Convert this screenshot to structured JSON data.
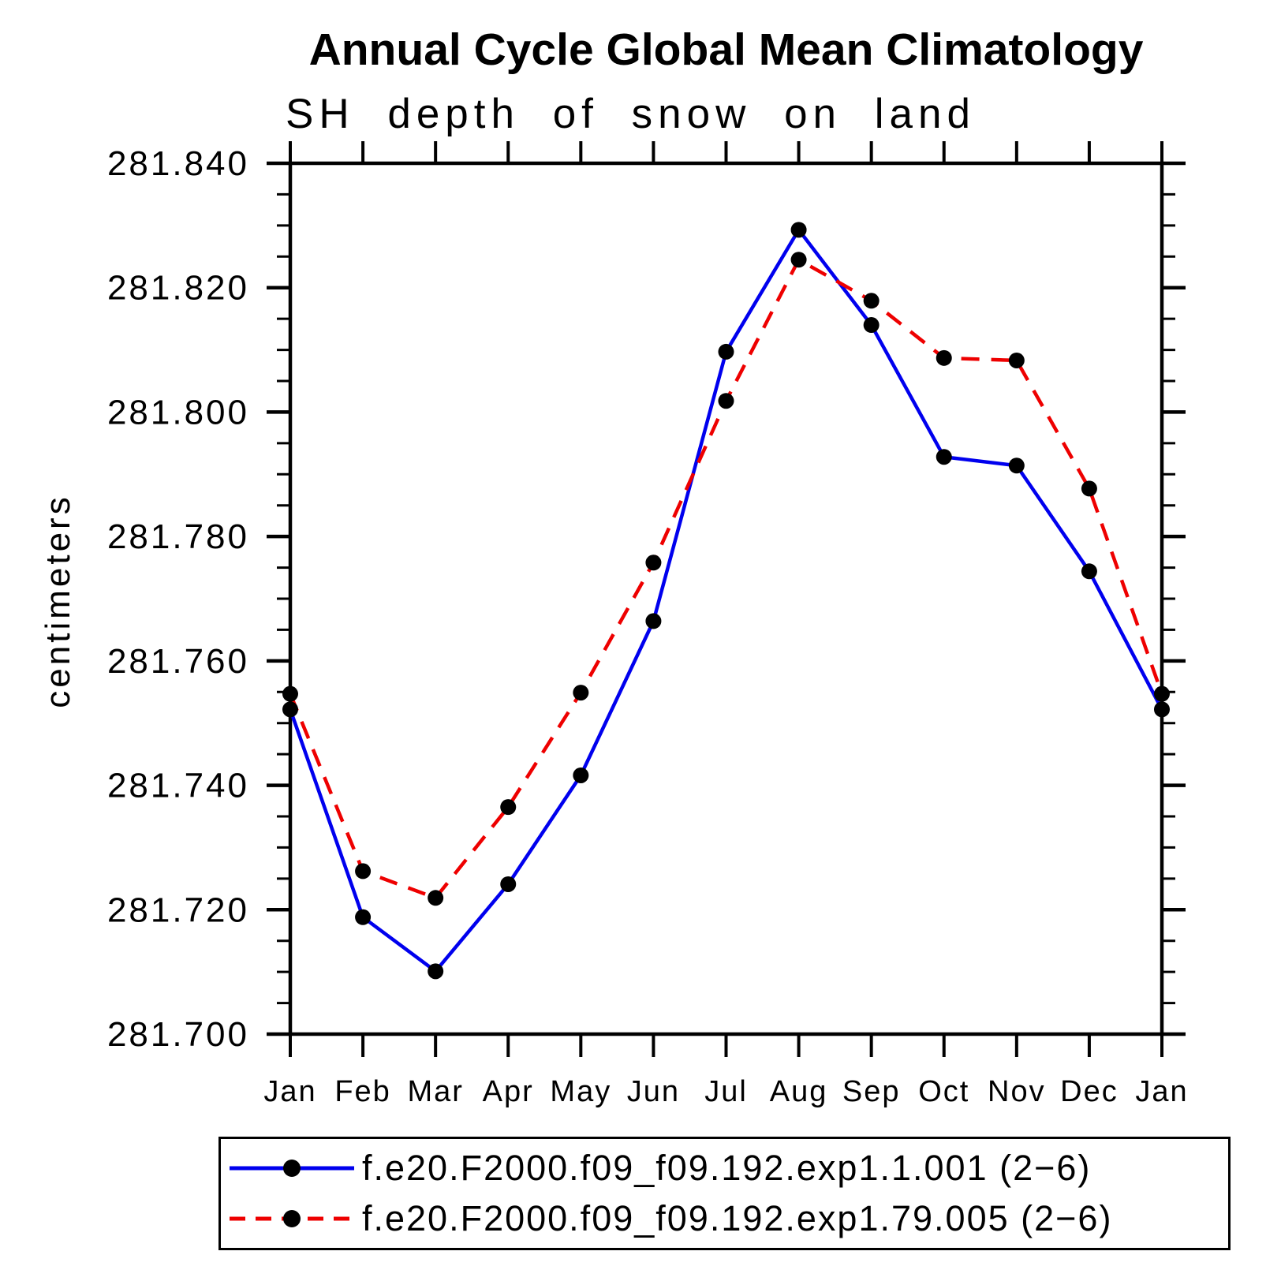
{
  "chart_data": {
    "type": "line",
    "title": "Annual Cycle Global Mean Climatology",
    "subtitle": "SH depth of snow on land",
    "ylabel": "centimeters",
    "x_categories": [
      "Jan",
      "Feb",
      "Mar",
      "Apr",
      "May",
      "Jun",
      "Jul",
      "Aug",
      "Sep",
      "Oct",
      "Nov",
      "Dec",
      "Jan"
    ],
    "ylim": [
      281.7,
      281.84
    ],
    "ytick_step": 0.02,
    "ytick_minor_step": 0.005,
    "ytick_labels": [
      "281.700",
      "281.720",
      "281.740",
      "281.760",
      "281.780",
      "281.800",
      "281.820",
      "281.840"
    ],
    "grid": false,
    "legend_position": "bottom",
    "frame_color": "#000000",
    "series": [
      {
        "name": "f.e20.F2000.f09_f09.192.exp1.1.001 (2−6)",
        "color": "#0000ee",
        "line_style": "solid",
        "marker": "filled-circle",
        "marker_color": "#000000",
        "values": [
          281.7522,
          281.7188,
          281.7101,
          281.7241,
          281.7416,
          281.7664,
          281.8097,
          281.8293,
          281.814,
          281.7928,
          281.7914,
          281.7744,
          281.7522
        ]
      },
      {
        "name": "f.e20.F2000.f09_f09.192.exp1.79.005 (2−6)",
        "color": "#ee0000",
        "line_style": "dashed",
        "marker": "filled-circle",
        "marker_color": "#000000",
        "values": [
          281.7547,
          281.7262,
          281.7219,
          281.7365,
          281.7549,
          281.7758,
          281.8018,
          281.8245,
          281.8179,
          281.8087,
          281.8083,
          281.7877,
          281.7547
        ]
      }
    ]
  }
}
